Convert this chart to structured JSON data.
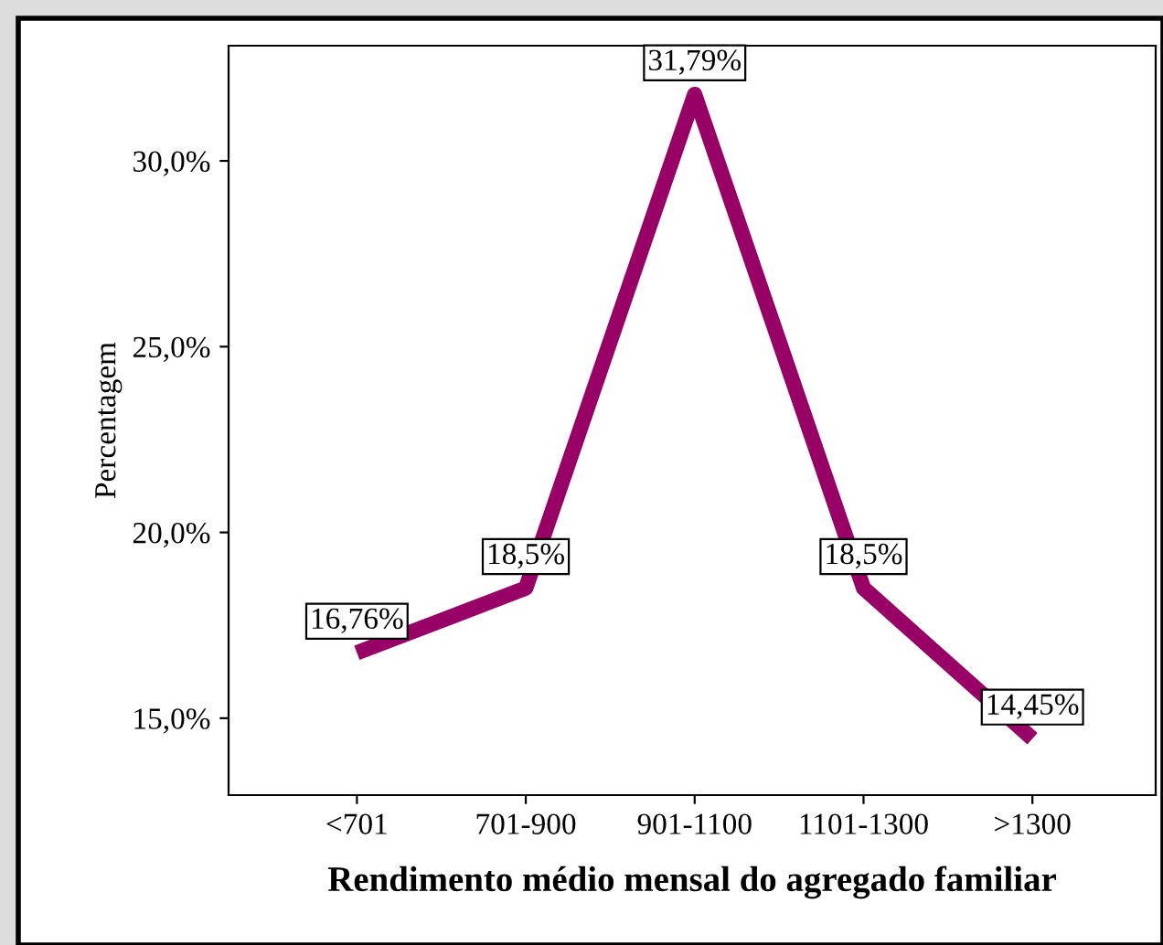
{
  "chart_data": {
    "type": "line",
    "xlabel": "Rendimento médio mensal do agregado familiar",
    "ylabel": "Percentagem",
    "categories": [
      "<701",
      "701-900",
      "901-1100",
      "1101-1300",
      ">1300"
    ],
    "series": [
      {
        "color": "#990066",
        "values": [
          16.76,
          18.5,
          31.79,
          18.5,
          14.45
        ],
        "value_labels": [
          "16,76%",
          "18,5%",
          "31,79%",
          "18,5%",
          "14,45%"
        ]
      }
    ],
    "ylim": [
      12.93,
      33.1
    ],
    "yticks": [
      {
        "value": 15,
        "label": "15,0%"
      },
      {
        "value": 20,
        "label": "20,0%"
      },
      {
        "value": 25,
        "label": "25,0%"
      },
      {
        "value": 30,
        "label": "30,0%"
      }
    ],
    "grid": false,
    "legend": false,
    "marker": "none",
    "line_style": "solid"
  }
}
